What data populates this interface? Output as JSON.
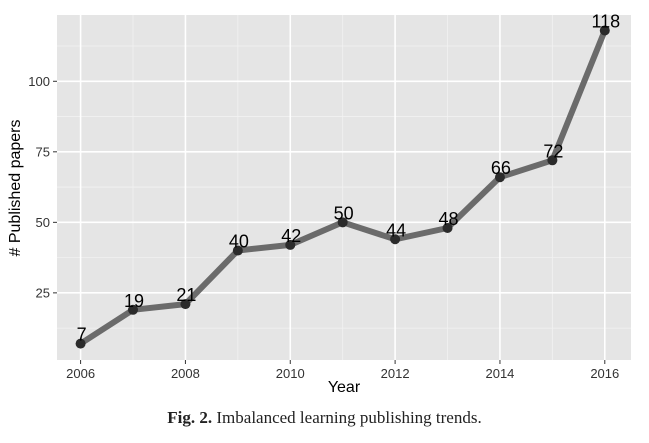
{
  "caption": {
    "figure_label": "Fig. 2.",
    "text": "Imbalanced learning publishing trends."
  },
  "chart_data": {
    "type": "line",
    "title": "",
    "xlabel": "Year",
    "ylabel": "# Published papers",
    "x": [
      2006,
      2007,
      2008,
      2009,
      2010,
      2011,
      2012,
      2013,
      2014,
      2015,
      2016
    ],
    "values": [
      7,
      19,
      21,
      40,
      42,
      50,
      44,
      48,
      66,
      72,
      118
    ],
    "x_ticks": [
      2006,
      2008,
      2010,
      2012,
      2014,
      2016
    ],
    "y_ticks": [
      25,
      50,
      75,
      100
    ],
    "xlim": [
      2005.55,
      2016.5
    ],
    "ylim": [
      1.2,
      123.5
    ],
    "grid": true,
    "panel_color": "#e5e5e5",
    "line_color": "#6b6b6b",
    "point_color": "#2b2b2b"
  }
}
